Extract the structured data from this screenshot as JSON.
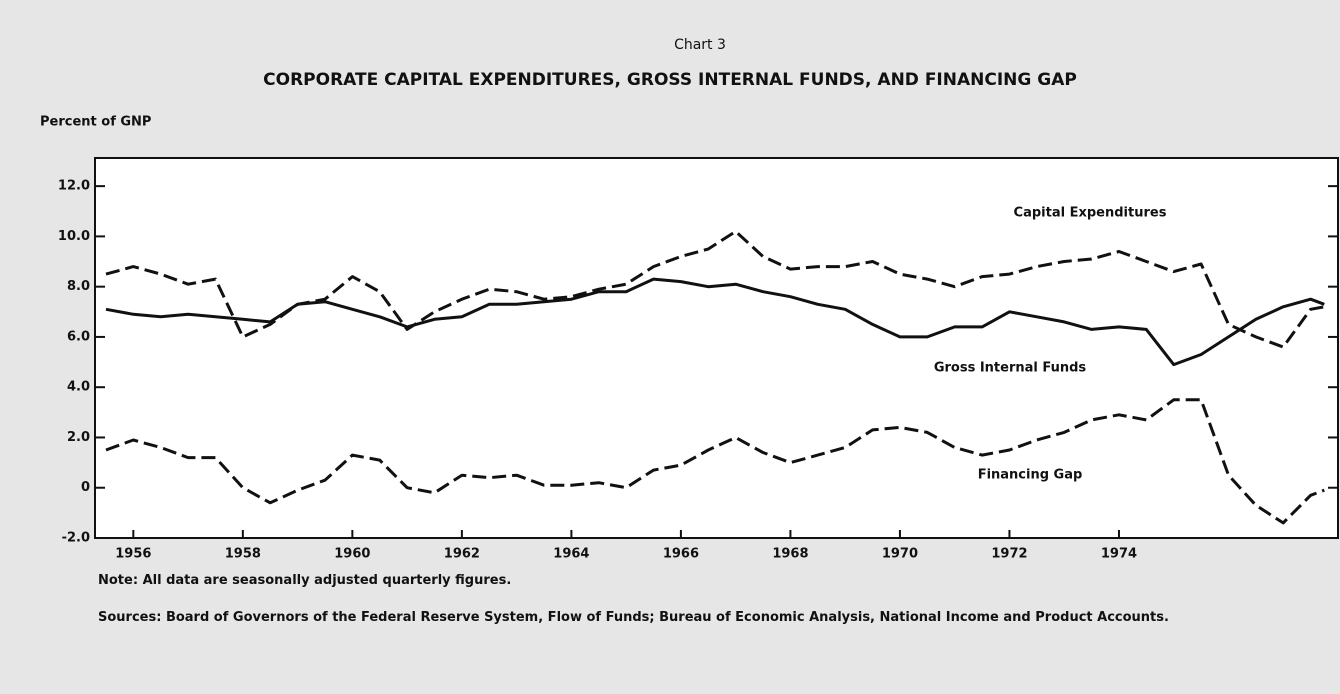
{
  "chart_data": {
    "type": "line",
    "supertitle": "Chart 3",
    "title": "CORPORATE CAPITAL EXPENDITURES, GROSS INTERNAL FUNDS, AND FINANCING GAP",
    "y_label": "Percent of GNP",
    "note": "Note:  All data are seasonally adjusted quarterly figures.",
    "sources": "Sources:  Board of Governors of the Federal Reserve System, Flow of Funds; Bureau of Economic Analysis, National Income and Product Accounts.",
    "x": [
      1955.5,
      1956,
      1956.5,
      1957,
      1957.5,
      1958,
      1958.5,
      1959,
      1959.5,
      1960,
      1960.5,
      1961,
      1961.5,
      1962,
      1962.5,
      1963,
      1963.5,
      1964,
      1964.5,
      1965,
      1965.5,
      1966,
      1966.5,
      1967,
      1967.5,
      1968,
      1968.5,
      1969,
      1969.5,
      1970,
      1970.5,
      1971,
      1971.5,
      1972,
      1972.5,
      1973,
      1973.5,
      1974,
      1974.5,
      1975,
      1975.5,
      1976,
      1976.5,
      1977,
      1977.5,
      1977.75
    ],
    "xlim": [
      1955.3,
      1978
    ],
    "xticks": [
      1956,
      1958,
      1960,
      1962,
      1964,
      1966,
      1968,
      1970,
      1972,
      1974
    ],
    "ylim": [
      -2,
      13
    ],
    "yticks": [
      {
        "value": 12,
        "label": "12.0"
      },
      {
        "value": 10,
        "label": "10.0"
      },
      {
        "value": 8,
        "label": "8.0"
      },
      {
        "value": 6,
        "label": "6.0"
      },
      {
        "value": 4,
        "label": "4.0"
      },
      {
        "value": 2,
        "label": "2.0"
      },
      0,
      {
        "value": -2,
        "label": "-2.0"
      }
    ],
    "series": [
      {
        "name": "Capital Expenditures",
        "color": "#111111",
        "dashed": true,
        "values": [
          8.5,
          8.8,
          8.5,
          8.1,
          8.3,
          6.0,
          6.5,
          7.3,
          7.5,
          8.4,
          7.8,
          6.3,
          7.0,
          7.5,
          7.9,
          7.8,
          7.5,
          7.6,
          7.9,
          8.1,
          8.8,
          9.2,
          9.5,
          10.2,
          9.2,
          8.7,
          8.8,
          8.8,
          9.0,
          8.5,
          8.3,
          8.0,
          8.4,
          8.5,
          8.8,
          9.0,
          9.1,
          9.4,
          9.0,
          8.6,
          8.9,
          6.5,
          6.0,
          5.6,
          7.1,
          7.2
        ]
      },
      {
        "name": "Gross Internal Funds",
        "color": "#111111",
        "dashed": false,
        "values": [
          7.1,
          6.9,
          6.8,
          6.9,
          6.8,
          6.7,
          6.6,
          7.3,
          7.4,
          7.1,
          6.8,
          6.4,
          6.7,
          6.8,
          7.3,
          7.3,
          7.4,
          7.5,
          7.8,
          7.8,
          8.3,
          8.2,
          8.0,
          8.1,
          7.8,
          7.6,
          7.3,
          7.1,
          6.5,
          6.0,
          6.0,
          6.4,
          6.4,
          7.0,
          6.8,
          6.6,
          6.3,
          6.4,
          6.3,
          4.9,
          5.3,
          6.0,
          6.7,
          7.2,
          7.5,
          7.3
        ]
      },
      {
        "name": "Financing Gap",
        "color": "#111111",
        "dashed": true,
        "values": [
          1.5,
          1.9,
          1.6,
          1.2,
          1.2,
          0.0,
          -0.6,
          -0.1,
          0.3,
          1.3,
          1.1,
          0.0,
          -0.2,
          0.5,
          0.4,
          0.5,
          0.1,
          0.1,
          0.2,
          0.0,
          0.7,
          0.9,
          1.5,
          2.0,
          1.4,
          1.0,
          1.3,
          1.6,
          2.3,
          2.4,
          2.2,
          1.6,
          1.3,
          1.5,
          1.9,
          2.2,
          2.7,
          2.9,
          2.7,
          3.5,
          3.5,
          0.5,
          -0.7,
          -1.4,
          -0.3,
          -0.1
        ]
      }
    ]
  }
}
